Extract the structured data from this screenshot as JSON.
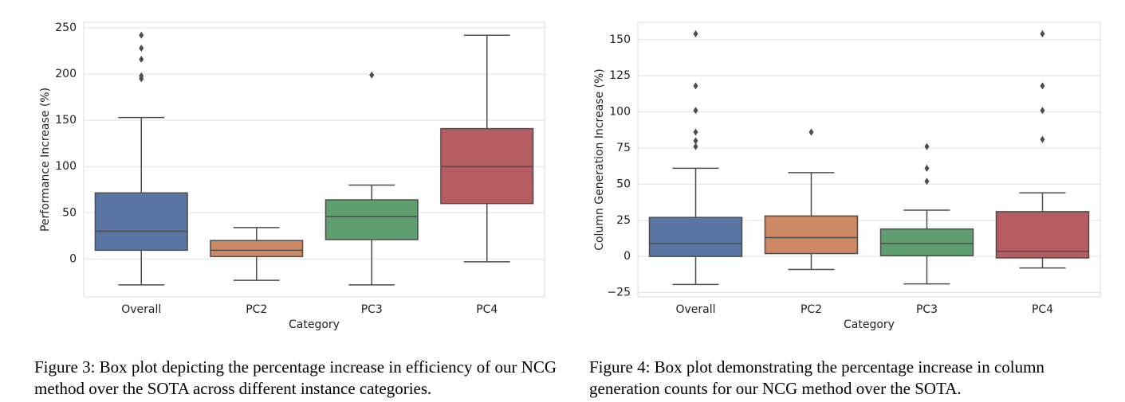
{
  "chart_data": [
    {
      "type": "box",
      "y_label": "Performance Increase (%)",
      "x_label": "Category",
      "categories": [
        "Overall",
        "PC2",
        "PC3",
        "PC4"
      ],
      "colors": [
        "#5975a4",
        "#cc8963",
        "#5f9e6e",
        "#b55d60"
      ],
      "boxes": [
        {
          "whisker_low": -28,
          "q1": 9.5,
          "median": 30,
          "q3": 71.5,
          "whisker_high": 153,
          "outliers": [
            242,
            228,
            216,
            198,
            195
          ]
        },
        {
          "whisker_low": -23,
          "q1": 2.6,
          "median": 9.5,
          "q3": 20,
          "whisker_high": 34,
          "outliers": []
        },
        {
          "whisker_low": -28,
          "q1": 21,
          "median": 46,
          "q3": 64,
          "whisker_high": 80,
          "outliers": [
            199
          ]
        },
        {
          "whisker_low": -3,
          "q1": 60,
          "median": 100,
          "q3": 141,
          "whisker_high": 242,
          "outliers": []
        }
      ],
      "ylim": [
        -41,
        256
      ],
      "yticks": [
        0,
        50,
        100,
        150,
        200,
        250
      ],
      "grid": true,
      "caption": "Figure 3: Box plot depicting the percentage increase in efficiency of our NCG method over the SOTA across different instance categories."
    },
    {
      "type": "box",
      "y_label": "Column Generation Increase (%)",
      "x_label": "Category",
      "categories": [
        "Overall",
        "PC2",
        "PC3",
        "PC4"
      ],
      "colors": [
        "#5975a4",
        "#cc8963",
        "#5f9e6e",
        "#b55d60"
      ],
      "boxes": [
        {
          "whisker_low": -19.4,
          "q1": 0,
          "median": 9,
          "q3": 27,
          "whisker_high": 61,
          "outliers": [
            154,
            118,
            101,
            86,
            80,
            76
          ]
        },
        {
          "whisker_low": -9,
          "q1": 2,
          "median": 13,
          "q3": 28,
          "whisker_high": 58,
          "outliers": [
            86
          ]
        },
        {
          "whisker_low": -19,
          "q1": 0.5,
          "median": 9,
          "q3": 19,
          "whisker_high": 32,
          "outliers": [
            76,
            61,
            52
          ]
        },
        {
          "whisker_low": -8,
          "q1": -1,
          "median": 3.5,
          "q3": 31,
          "whisker_high": 44,
          "outliers": [
            154,
            118,
            101,
            81
          ]
        }
      ],
      "ylim": [
        -28,
        162
      ],
      "yticks": [
        {
          "value": -25,
          "label": "−25"
        },
        0,
        25,
        50,
        75,
        100,
        125,
        150
      ],
      "grid": true,
      "caption": "Figure 4: Box plot demonstrating the percentage increase in column generation counts for our NCG method over the SOTA."
    }
  ]
}
